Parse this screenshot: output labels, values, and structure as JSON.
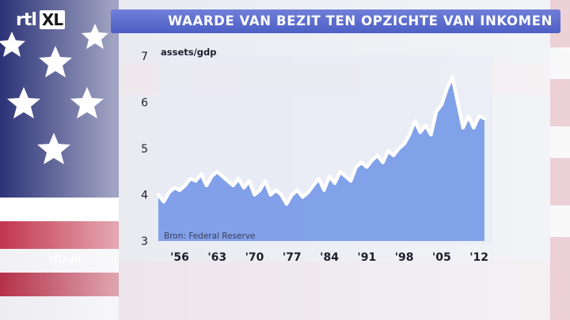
{
  "brand": {
    "logo_text": "rtl",
    "logo_badge": "XL",
    "site": "rtlz.nl"
  },
  "title": "WAARDE VAN BEZIT TEN OPZICHTE VAN INKOMEN",
  "colors": {
    "title_bar": "#5567cc",
    "area_fill": "#6f93e6",
    "line": "#ffffff",
    "plot_bg": "#e8ebf6"
  },
  "chart_data": {
    "type": "area",
    "title": "",
    "ylabel": "assets/gdp",
    "xlabel": "",
    "source": "Bron: Federal Reserve",
    "ylim": [
      3,
      7
    ],
    "xlim": [
      1952,
      2014.5
    ],
    "yticks": [
      3,
      4,
      5,
      6,
      7
    ],
    "xticks": [
      1956,
      1963,
      1970,
      1977,
      1984,
      1991,
      1998,
      2005,
      2012
    ],
    "xtick_labels": [
      "'56",
      "'63",
      "'70",
      "'77",
      "'84",
      "'91",
      "'98",
      "'05",
      "'12"
    ],
    "grid": false,
    "x": [
      1952,
      1953,
      1954,
      1955,
      1956,
      1957,
      1958,
      1959,
      1960,
      1961,
      1962,
      1963,
      1964,
      1965,
      1966,
      1967,
      1968,
      1969,
      1970,
      1971,
      1972,
      1973,
      1974,
      1975,
      1976,
      1977,
      1978,
      1979,
      1980,
      1981,
      1982,
      1983,
      1984,
      1985,
      1986,
      1987,
      1988,
      1989,
      1990,
      1991,
      1992,
      1993,
      1994,
      1995,
      1996,
      1997,
      1998,
      1999,
      2000,
      2001,
      2002,
      2003,
      2004,
      2005,
      2006,
      2007,
      2008,
      2009,
      2010,
      2011,
      2012,
      2013
    ],
    "values": [
      4.0,
      3.85,
      4.05,
      4.15,
      4.1,
      4.2,
      4.35,
      4.3,
      4.45,
      4.2,
      4.4,
      4.5,
      4.4,
      4.3,
      4.2,
      4.35,
      4.15,
      4.3,
      4.0,
      4.1,
      4.3,
      4.0,
      4.1,
      4.0,
      3.8,
      4.0,
      4.1,
      3.95,
      4.05,
      4.2,
      4.35,
      4.1,
      4.4,
      4.25,
      4.5,
      4.4,
      4.3,
      4.6,
      4.7,
      4.6,
      4.75,
      4.85,
      4.7,
      4.95,
      4.85,
      5.0,
      5.1,
      5.3,
      5.6,
      5.35,
      5.5,
      5.3,
      5.8,
      5.95,
      6.3,
      6.55,
      6.0,
      5.45,
      5.7,
      5.45,
      5.7,
      5.65
    ]
  }
}
